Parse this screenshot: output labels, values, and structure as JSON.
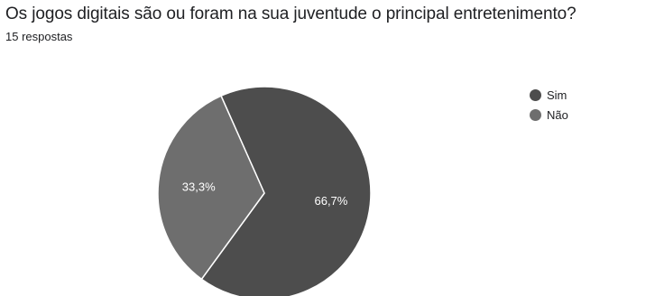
{
  "header": {
    "title": "Os jogos digitais são ou foram na sua juventude o principal entretenimento?",
    "subtitle": "15 respostas"
  },
  "chart_data": {
    "type": "pie",
    "categories": [
      "Sim",
      "Não"
    ],
    "values": [
      66.7,
      33.3
    ],
    "labels": [
      "66,7%",
      "33,3%"
    ],
    "colors": [
      "#4d4d4d",
      "#6e6e6e"
    ],
    "start_angle_deg": -24,
    "legend": "top-right"
  }
}
